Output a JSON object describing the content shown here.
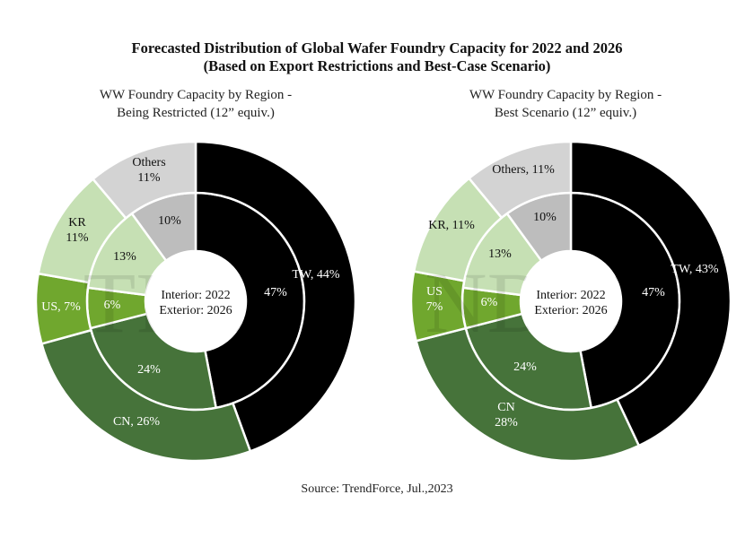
{
  "chart_data": {
    "title": "Forecasted Distribution of Global Wafer Foundry Capacity for 2022 and 2026",
    "subtitle": "(Based on Export Restrictions and Best-Case Scenario)",
    "source": "Source: TrendForce, Jul.,2023",
    "watermark": "TRENDFORCE",
    "charts": [
      {
        "type": "pie",
        "variant": "nested-donut",
        "title_lines": [
          "WW Foundry Capacity by Region -",
          "Being Restricted (12” equiv.)"
        ],
        "center_label": [
          "Interior: 2022",
          "Exterior: 2026"
        ],
        "categories": [
          "TW",
          "CN",
          "US",
          "KR",
          "Others"
        ],
        "series": [
          {
            "name": "2022 (Interior)",
            "values": [
              47,
              24,
              6,
              13,
              10
            ],
            "labels": [
              "47%",
              "24%",
              "6%",
              "13%",
              "10%"
            ]
          },
          {
            "name": "2026 (Exterior)",
            "values": [
              44,
              26,
              7,
              11,
              11
            ],
            "labels": [
              [
                "TW, 44%"
              ],
              [
                "CN, 26%"
              ],
              [
                "US, 7%"
              ],
              [
                "KR",
                "11%"
              ],
              [
                "Others",
                "11%"
              ]
            ]
          }
        ]
      },
      {
        "type": "pie",
        "variant": "nested-donut",
        "title_lines": [
          "WW Foundry Capacity by Region -",
          "Best Scenario (12” equiv.)"
        ],
        "center_label": [
          "Interior: 2022",
          "Exterior: 2026"
        ],
        "categories": [
          "TW",
          "CN",
          "US",
          "KR",
          "Others"
        ],
        "series": [
          {
            "name": "2022 (Interior)",
            "values": [
              47,
              24,
              6,
              13,
              10
            ],
            "labels": [
              "47%",
              "24%",
              "6%",
              "13%",
              "10%"
            ]
          },
          {
            "name": "2026 (Exterior)",
            "values": [
              43,
              28,
              7,
              11,
              11
            ],
            "labels": [
              [
                "TW, 43%"
              ],
              [
                "CN",
                "28%"
              ],
              [
                "US",
                "7%"
              ],
              [
                "KR, 11%"
              ],
              [
                "Others, 11%"
              ]
            ]
          }
        ]
      }
    ],
    "colors": {
      "TW": "#000000",
      "CN": "#46733a",
      "US": "#70a72e",
      "KR": "#c6e0b4",
      "Others_outer": "#d3d3d3",
      "Others_inner": "#bdbdbd"
    },
    "label_colors": {
      "TW": "#ffffff",
      "CN": "#ffffff",
      "US": "#ffffff",
      "KR": "#111111",
      "Others": "#111111"
    }
  }
}
